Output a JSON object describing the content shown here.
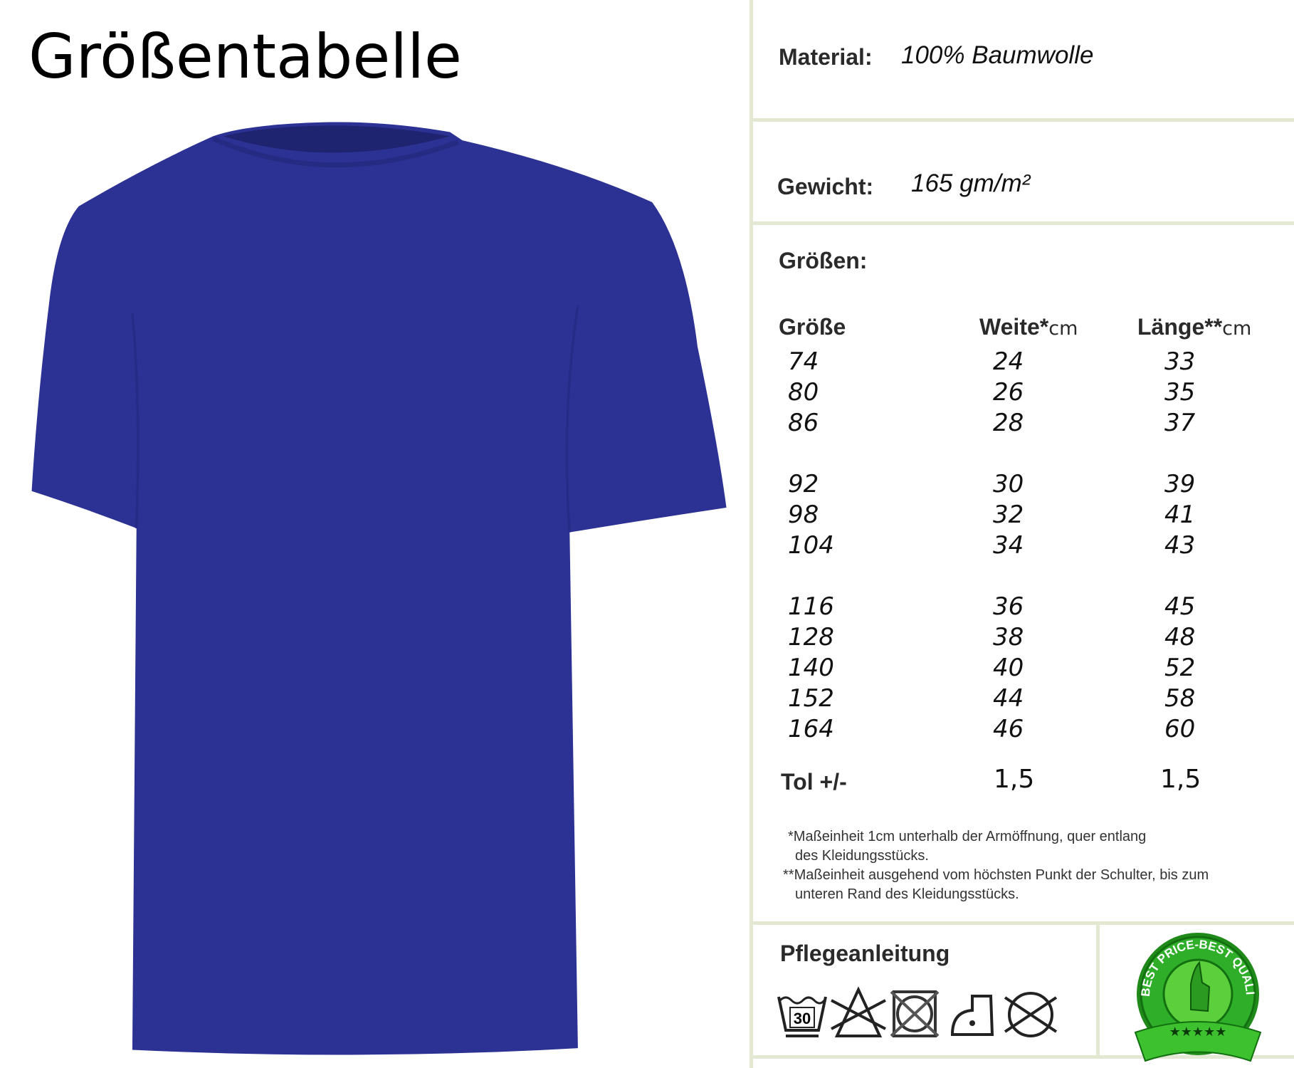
{
  "title": "Größentabelle",
  "product": {
    "image": "navy-tshirt",
    "color": "#2c3294"
  },
  "material": {
    "label": "Material:",
    "value": "100% Baumwolle"
  },
  "weight": {
    "label": "Gewicht:",
    "value": "165 gm/m²"
  },
  "sizes_label": "Größen:",
  "table": {
    "headers": [
      {
        "label": "Größe",
        "unit": ""
      },
      {
        "label": "Weite*",
        "unit": "cm"
      },
      {
        "label": "Länge**",
        "unit": "cm"
      }
    ],
    "rows": [
      [
        "74",
        "24",
        "33"
      ],
      [
        "80",
        "26",
        "35"
      ],
      [
        "86",
        "28",
        "37"
      ],
      [
        "92",
        "30",
        "39"
      ],
      [
        "98",
        "32",
        "41"
      ],
      [
        "104",
        "34",
        "43"
      ],
      [
        "116",
        "36",
        "45"
      ],
      [
        "128",
        "38",
        "48"
      ],
      [
        "140",
        "40",
        "52"
      ],
      [
        "152",
        "44",
        "58"
      ],
      [
        "164",
        "46",
        "60"
      ]
    ],
    "tolerance": {
      "label": "Tol +/-",
      "weite": "1,5",
      "laenge": "1,5"
    }
  },
  "footnotes": [
    "*Maßeinheit 1cm unterhalb der Armöffnung, quer entlang",
    "des Kleidungsstücks.",
    "**Maßeinheit ausgehend vom höchsten Punkt der Schulter, bis zum",
    "unteren Rand des Kleidungsstücks."
  ],
  "care": {
    "title": "Pflegeanleitung",
    "icons": [
      "wash-30-icon",
      "no-bleach-icon",
      "no-tumble-dry-icon",
      "iron-low-icon",
      "no-dry-clean-icon"
    ],
    "wash_temp": "30"
  },
  "badge": {
    "text": "BEST PRICE-BEST QUALITY",
    "color": "#2fae2a"
  }
}
